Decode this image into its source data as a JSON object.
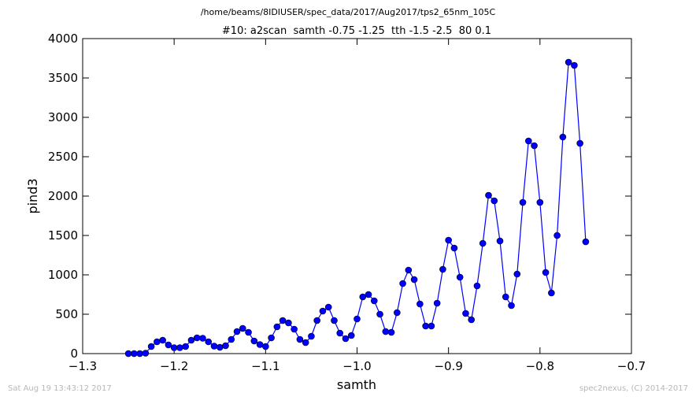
{
  "page": {
    "suptitle": "/home/beams/8IDIUSER/spec_data/2017/Aug2017/tps2_65nm_105C",
    "footer_left": "Sat Aug 19 13:43:12 2017",
    "footer_right": "spec2nexus, (C) 2014-2017"
  },
  "colors": {
    "series": "#0000ff",
    "marker_fill": "#0000ff",
    "marker_edge": "#000000",
    "axes": "#000000",
    "footer": "#b8b8b8"
  },
  "chart_data": {
    "type": "line",
    "title": "#10: a2scan  samth -0.75 -1.25  tth -1.5 -2.5  80 0.1",
    "xlabel": "samth",
    "ylabel": "pind3",
    "xlim": [
      -1.3,
      -0.7
    ],
    "ylim": [
      0,
      4000
    ],
    "xticks": [
      -1.3,
      -1.2,
      -1.1,
      -1.0,
      -0.9,
      -0.8,
      -0.7
    ],
    "xtick_labels": [
      "−1.3",
      "−1.2",
      "−1.1",
      "−1.0",
      "−0.9",
      "−0.8",
      "−0.7"
    ],
    "yticks": [
      0,
      500,
      1000,
      1500,
      2000,
      2500,
      3000,
      3500,
      4000
    ],
    "ytick_labels": [
      "0",
      "500",
      "1000",
      "1500",
      "2000",
      "2500",
      "3000",
      "3500",
      "4000"
    ],
    "grid": false,
    "legend": "none",
    "marker": "circle",
    "series": [
      {
        "x": [
          -1.25,
          -1.24375,
          -1.2375,
          -1.23125,
          -1.225,
          -1.21875,
          -1.2125,
          -1.20625,
          -1.2,
          -1.19375,
          -1.1875,
          -1.18125,
          -1.175,
          -1.16875,
          -1.1625,
          -1.15625,
          -1.15,
          -1.14375,
          -1.1375,
          -1.13125,
          -1.125,
          -1.11875,
          -1.1125,
          -1.10625,
          -1.1,
          -1.09375,
          -1.0875,
          -1.08125,
          -1.075,
          -1.06875,
          -1.0625,
          -1.05625,
          -1.05,
          -1.04375,
          -1.0375,
          -1.03125,
          -1.025,
          -1.01875,
          -1.0125,
          -1.00625,
          -1.0,
          -0.99375,
          -0.9875,
          -0.98125,
          -0.975,
          -0.96875,
          -0.9625,
          -0.95625,
          -0.95,
          -0.94375,
          -0.9375,
          -0.93125,
          -0.925,
          -0.91875,
          -0.9125,
          -0.90625,
          -0.9,
          -0.89375,
          -0.8875,
          -0.88125,
          -0.875,
          -0.86875,
          -0.8625,
          -0.85625,
          -0.85,
          -0.84375,
          -0.8375,
          -0.83125,
          -0.825,
          -0.81875,
          -0.8125,
          -0.80625,
          -0.8,
          -0.79375,
          -0.7875,
          -0.78125,
          -0.775,
          -0.76875,
          -0.7625,
          -0.75625,
          -0.75
        ],
        "y": [
          0,
          0,
          0,
          5,
          90,
          150,
          170,
          110,
          75,
          75,
          90,
          170,
          200,
          195,
          150,
          95,
          80,
          100,
          180,
          280,
          320,
          270,
          160,
          115,
          90,
          200,
          340,
          420,
          390,
          310,
          180,
          140,
          220,
          420,
          540,
          590,
          420,
          260,
          190,
          230,
          440,
          720,
          750,
          670,
          500,
          280,
          270,
          520,
          890,
          1060,
          940,
          630,
          350,
          350,
          640,
          1070,
          1440,
          1340,
          970,
          510,
          430,
          860,
          1400,
          2010,
          1940,
          1430,
          720,
          610,
          1010,
          1920,
          2700,
          2640,
          1920,
          1030,
          770,
          1500,
          2750,
          3700,
          3660,
          2670,
          1420
        ]
      }
    ]
  }
}
